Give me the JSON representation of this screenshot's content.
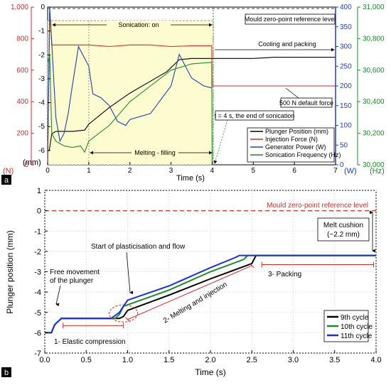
{
  "chart_data": [
    {
      "type": "line",
      "panel_label": "a",
      "xlabel": "Time (s)",
      "xlim": [
        0,
        7
      ],
      "x_ticks": [
        "0",
        "1",
        "2",
        "3",
        "4",
        "5",
        "6",
        "7"
      ],
      "axes": {
        "position": {
          "unit": "(mm)",
          "range": [
            -6.6,
            0
          ],
          "ticks": [
            "0",
            "-1",
            "-2",
            "-3",
            "-4",
            "-5",
            "-6"
          ],
          "color": "#000000"
        },
        "force": {
          "unit": "(N)",
          "range": [
            0,
            1000
          ],
          "ticks": [
            "1,000",
            "800",
            "600",
            "400",
            "200",
            "0"
          ],
          "color": "#d42a2a"
        },
        "power": {
          "unit": "(W)",
          "range": [
            0,
            400
          ],
          "ticks": [
            "400",
            "350",
            "300",
            "250",
            "200",
            "150",
            "100",
            "50",
            "0"
          ],
          "color": "#2140b5"
        },
        "frequency": {
          "unit": "(Hz)",
          "range": [
            30000,
            31000
          ],
          "ticks": [
            "31,000",
            "30,800",
            "30,600",
            "30,400",
            "30,200",
            "30,000"
          ],
          "color": "#1f8a2d"
        }
      },
      "series": [
        {
          "name": "Plunger Position (mm)",
          "axis": "position",
          "color": "#000000",
          "x": [
            0,
            0.04,
            0.1,
            0.2,
            0.6,
            0.9,
            1.0,
            1.5,
            2.0,
            2.5,
            2.9,
            3.2,
            3.5,
            4.0,
            4.5,
            5.0,
            5.5,
            6.0,
            7.0
          ],
          "y": [
            -6.0,
            -6.0,
            -5.3,
            -5.2,
            -5.2,
            -5.15,
            -4.9,
            -4.2,
            -3.6,
            -3.1,
            -2.7,
            -2.2,
            -2.15,
            -2.15,
            -2.15,
            -2.15,
            -2.1,
            -2.1,
            -2.1
          ]
        },
        {
          "name": "Injection Force (N)",
          "axis": "force",
          "color": "#d42a2a",
          "x": [
            0,
            0.05,
            0.1,
            0.3,
            0.5,
            1.0,
            1.5,
            2.0,
            2.5,
            3.0,
            3.5,
            3.99,
            4.0,
            4.5,
            5.0,
            5.5,
            6.0,
            6.5,
            7.0
          ],
          "y": [
            0,
            980,
            760,
            760,
            760,
            760,
            750,
            760,
            760,
            750,
            755,
            755,
            500,
            500,
            500,
            500,
            500,
            500,
            500
          ]
        },
        {
          "name": "Generator Power (W)",
          "axis": "power",
          "color": "#2140b5",
          "x": [
            0,
            0.05,
            0.1,
            0.2,
            0.3,
            0.4,
            0.5,
            0.6,
            0.75,
            0.8,
            0.9,
            1.0,
            1.1,
            1.3,
            1.5,
            1.7,
            1.9,
            2.0,
            2.5,
            3.0,
            3.2,
            3.5,
            3.8,
            4.0
          ],
          "y": [
            0,
            400,
            310,
            120,
            60,
            80,
            130,
            200,
            300,
            290,
            270,
            250,
            180,
            170,
            150,
            110,
            100,
            115,
            130,
            200,
            280,
            220,
            200,
            195
          ]
        },
        {
          "name": "Sonication Frequency (Hz)",
          "axis": "frequency",
          "color": "#1f8a2d",
          "x": [
            0,
            0.05,
            0.1,
            0.2,
            0.4,
            0.6,
            0.8,
            0.9,
            1.0,
            1.5,
            2.0,
            2.5,
            3.0,
            3.5,
            3.99,
            4.0
          ],
          "y": [
            30650,
            30700,
            30200,
            30150,
            30120,
            30110,
            30120,
            30080,
            30150,
            30250,
            30400,
            30500,
            30600,
            30640,
            30650,
            30000
          ]
        }
      ],
      "annotations": [
        "Sonication: on",
        "Mould zero-point reference level",
        "Cooling and packing",
        "500 N default force",
        "t = 4 s, the end of sonication",
        "Melting - filling"
      ]
    },
    {
      "type": "line",
      "panel_label": "b",
      "xlabel": "Time (s)",
      "ylabel": "Plunger position (mm)",
      "xlim": [
        0,
        4
      ],
      "ylim": [
        -7,
        1
      ],
      "x_ticks": [
        "0.0",
        "0.5",
        "1.0",
        "1.5",
        "2.0",
        "2.5",
        "3.0",
        "3.5",
        "4.0"
      ],
      "y_ticks": [
        "1",
        "0",
        "-1",
        "-2",
        "-3",
        "-4",
        "-5",
        "-6",
        "-7"
      ],
      "series": [
        {
          "name": "9th cycle",
          "color": "#000000",
          "x": [
            0,
            0.08,
            0.12,
            0.2,
            0.9,
            0.95,
            1.0,
            1.5,
            2.0,
            2.5,
            2.55,
            4.0
          ],
          "y": [
            -6.0,
            -6.0,
            -5.6,
            -5.3,
            -5.3,
            -5.2,
            -4.9,
            -4.15,
            -3.35,
            -2.6,
            -2.2,
            -2.2
          ]
        },
        {
          "name": "10th cycle",
          "color": "#1f8a2d",
          "x": [
            0,
            0.08,
            0.12,
            0.2,
            0.85,
            0.9,
            0.95,
            1.5,
            2.0,
            2.4,
            2.45,
            4.0
          ],
          "y": [
            -6.0,
            -6.0,
            -5.6,
            -5.3,
            -5.3,
            -5.1,
            -4.7,
            -3.9,
            -3.0,
            -2.4,
            -2.2,
            -2.2
          ]
        },
        {
          "name": "11th cycle",
          "color": "#1a2fd8",
          "x": [
            0,
            0.08,
            0.12,
            0.2,
            0.8,
            0.9,
            1.0,
            1.5,
            2.0,
            2.3,
            2.35,
            4.0
          ],
          "y": [
            -6.0,
            -6.0,
            -5.6,
            -5.3,
            -5.3,
            -5.0,
            -4.4,
            -3.7,
            -2.8,
            -2.3,
            -2.2,
            -2.2
          ]
        }
      ],
      "reference_line": {
        "label": "Mould zero-point reference level",
        "y": 0,
        "color": "#c9302c"
      },
      "annotations": [
        "Melt cushion",
        "(~2.2 mm)",
        "Start of plasticisation and flow",
        "Free movement",
        "of the plunger",
        "1- Elastic compression",
        "2- Melting and injection",
        "3- Packing"
      ]
    }
  ]
}
